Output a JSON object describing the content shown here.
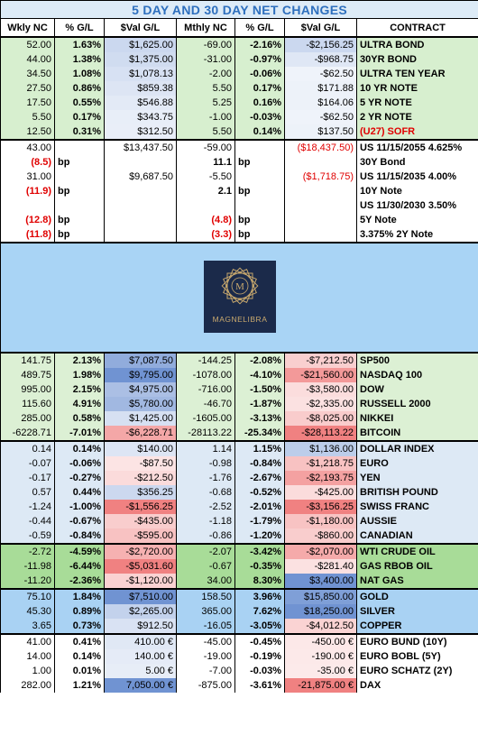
{
  "title": "5 DAY AND 30 DAY NET CHANGES",
  "headers": [
    "Wkly NC",
    "% G/L",
    "$Val G/L",
    "Mthly NC",
    "% G/L",
    "$Val G/L",
    "CONTRACT"
  ],
  "sections": [
    {
      "rows": [
        [
          "52.00",
          "1.63%",
          "$1,625.00",
          "-69.00",
          "-2.16%",
          "-$2,156.25",
          "ULTRA BOND"
        ],
        [
          "44.00",
          "1.38%",
          "$1,375.00",
          "-31.00",
          "-0.97%",
          "-$968.75",
          "30YR BOND"
        ],
        [
          "34.50",
          "1.08%",
          "$1,078.13",
          "-2.00",
          "-0.06%",
          "-$62.50",
          "ULTRA TEN YEAR"
        ],
        [
          "27.50",
          "0.86%",
          "$859.38",
          "5.50",
          "0.17%",
          "$171.88",
          "10 YR NOTE"
        ],
        [
          "17.50",
          "0.55%",
          "$546.88",
          "5.25",
          "0.16%",
          "$164.06",
          "5 YR NOTE"
        ],
        [
          "5.50",
          "0.17%",
          "$343.75",
          "-1.00",
          "-0.03%",
          "-$62.50",
          "2 YR NOTE"
        ],
        [
          "12.50",
          "0.31%",
          "$312.50",
          "5.50",
          "0.14%",
          "$137.50",
          "(U27) SOFR"
        ]
      ]
    },
    {
      "rows": [
        [
          "43.00",
          null,
          "$13,437.50",
          "-59.00",
          null,
          "($18,437.50)",
          "US 11/15/2055 4.625%"
        ],
        [
          "(8.5)",
          "bp",
          null,
          "11.1",
          "bp",
          null,
          "30Y Bond"
        ],
        [
          "31.00",
          null,
          "$9,687.50",
          "-5.50",
          null,
          "($1,718.75)",
          "US 11/15/2035 4.00%"
        ],
        [
          "(11.9)",
          "bp",
          null,
          "2.1",
          "bp",
          null,
          "10Y Note"
        ],
        [
          null,
          null,
          null,
          null,
          null,
          null,
          "US 11/30/2030 3.50%"
        ],
        [
          "(12.8)",
          "bp",
          null,
          "(4.8)",
          "bp",
          null,
          "5Y  Note"
        ],
        [
          "(11.8)",
          "bp",
          null,
          "(3.3)",
          "bp",
          null,
          "3.375% 2Y Note"
        ]
      ]
    },
    {
      "logo": "MAGNELIBRA"
    },
    {
      "rows": [
        [
          "141.75",
          "2.13%",
          "$7,087.50",
          "-144.25",
          "-2.08%",
          "-$7,212.50",
          "SP500"
        ],
        [
          "489.75",
          "1.98%",
          "$9,795.00",
          "-1078.00",
          "-4.10%",
          "-$21,560.00",
          "NASDAQ 100"
        ],
        [
          "995.00",
          "2.15%",
          "$4,975.00",
          "-716.00",
          "-1.50%",
          "-$3,580.00",
          "DOW"
        ],
        [
          "115.60",
          "4.91%",
          "$5,780.00",
          "-46.70",
          "-1.87%",
          "-$2,335.00",
          "RUSSELL 2000"
        ],
        [
          "285.00",
          "0.58%",
          "$1,425.00",
          "-1605.00",
          "-3.13%",
          "-$8,025.00",
          "NIKKEI"
        ],
        [
          "-6228.71",
          "-7.01%",
          "-$6,228.71",
          "-28113.22",
          "-25.34%",
          "-$28,113.22",
          "BITCOIN"
        ]
      ]
    },
    {
      "rows": [
        [
          "0.14",
          "0.14%",
          "$140.00",
          "1.14",
          "1.15%",
          "$1,136.00",
          "DOLLAR INDEX"
        ],
        [
          "-0.07",
          "-0.06%",
          "-$87.50",
          "-0.98",
          "-0.84%",
          "-$1,218.75",
          "EURO"
        ],
        [
          "-0.17",
          "-0.27%",
          "-$212.50",
          "-1.76",
          "-2.67%",
          "-$2,193.75",
          "YEN"
        ],
        [
          "0.57",
          "0.44%",
          "$356.25",
          "-0.68",
          "-0.52%",
          "-$425.00",
          "BRITISH POUND"
        ],
        [
          "-1.24",
          "-1.00%",
          "-$1,556.25",
          "-2.52",
          "-2.01%",
          "-$3,156.25",
          "SWISS FRANC"
        ],
        [
          "-0.44",
          "-0.67%",
          "-$435.00",
          "-1.18",
          "-1.79%",
          "-$1,180.00",
          "AUSSIE"
        ],
        [
          "-0.59",
          "-0.84%",
          "-$595.00",
          "-0.86",
          "-1.20%",
          "-$860.00",
          "CANADIAN"
        ]
      ]
    },
    {
      "rows": [
        [
          "-2.72",
          "-4.59%",
          "-$2,720.00",
          "-2.07",
          "-3.42%",
          "-$2,070.00",
          "WTI CRUDE OIL"
        ],
        [
          "-11.98",
          "-6.44%",
          "-$5,031.60",
          "-0.67",
          "-0.35%",
          "-$281.40",
          "GAS RBOB OIL"
        ],
        [
          "-11.20",
          "-2.36%",
          "-$1,120.00",
          "34.00",
          "8.30%",
          "$3,400.00",
          "NAT GAS"
        ]
      ]
    },
    {
      "rows": [
        [
          "75.10",
          "1.84%",
          "$7,510.00",
          "158.50",
          "3.96%",
          "$15,850.00",
          "GOLD"
        ],
        [
          "45.30",
          "0.89%",
          "$2,265.00",
          "365.00",
          "7.62%",
          "$18,250.00",
          "SILVER"
        ],
        [
          "3.65",
          "0.73%",
          "$912.50",
          "-16.05",
          "-3.05%",
          "-$4,012.50",
          "COPPER"
        ]
      ]
    },
    {
      "rows": [
        [
          "41.00",
          "0.41%",
          "410.00 €",
          "-45.00",
          "-0.45%",
          "-450.00 €",
          "EURO BUND (10Y)"
        ],
        [
          "14.00",
          "0.14%",
          "140.00 €",
          "-19.00",
          "-0.19%",
          "-190.00 €",
          "EURO BOBL (5Y)"
        ],
        [
          "1.00",
          "0.01%",
          "5.00 €",
          "-7.00",
          "-0.03%",
          "-35.00 €",
          "EURO SCHATZ (2Y)"
        ],
        [
          "282.00",
          "1.21%",
          "7,050.00 €",
          "-875.00",
          "-3.61%",
          "-21,875.00 €",
          "DAX"
        ]
      ]
    }
  ]
}
